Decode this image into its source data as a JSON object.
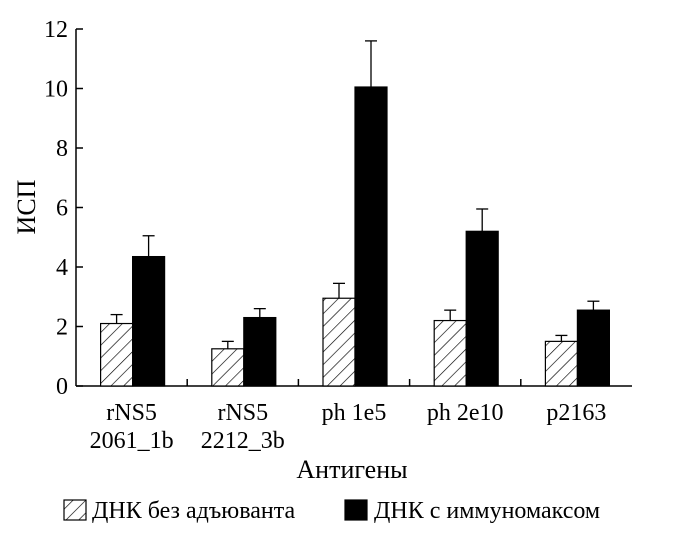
{
  "chart_data": {
    "type": "bar",
    "title": "",
    "xlabel": "Антигены",
    "ylabel": "ИСП",
    "ylim": [
      0,
      12
    ],
    "yticks": [
      "0",
      "2",
      "4",
      "6",
      "8",
      "10",
      "12"
    ],
    "categories": [
      [
        "rNS5",
        "2061_1b"
      ],
      [
        "rNS5",
        "2212_3b"
      ],
      [
        "ph 1e5"
      ],
      [
        "ph 2e10"
      ],
      [
        "p2163"
      ]
    ],
    "series": [
      {
        "name": "ДНК без адъюванта",
        "pattern": "hatched",
        "values": [
          2.1,
          1.25,
          2.95,
          2.2,
          1.5
        ],
        "errors": [
          0.3,
          0.25,
          0.5,
          0.35,
          0.2
        ]
      },
      {
        "name": "ДНК с иммуномаксом",
        "pattern": "solid",
        "color": "#000000",
        "values": [
          4.35,
          2.3,
          10.05,
          5.2,
          2.55
        ],
        "errors": [
          0.7,
          0.3,
          1.55,
          0.75,
          0.3
        ]
      }
    ],
    "grid": false,
    "legend_position": "bottom"
  }
}
